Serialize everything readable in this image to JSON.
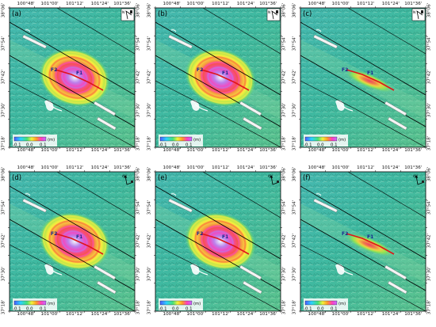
{
  "figure": {
    "panels": [
      {
        "id": "a",
        "label": "(a)",
        "faults": [
          "F2",
          "F1"
        ],
        "north": "N",
        "strong": true,
        "compass": "box"
      },
      {
        "id": "b",
        "label": "(b)",
        "faults": [
          "F2",
          "F1"
        ],
        "north": "N",
        "strong": true,
        "compass": "box"
      },
      {
        "id": "c",
        "label": "(c)",
        "faults": [
          "F2",
          "F1"
        ],
        "north": "N",
        "strong": false,
        "compass": "box"
      },
      {
        "id": "d",
        "label": "(d)",
        "faults": [
          "F2",
          "F1"
        ],
        "north": "AN",
        "strong": true,
        "compass": "arrow"
      },
      {
        "id": "e",
        "label": "(e)",
        "faults": [
          "F2",
          "F1"
        ],
        "north": "AN",
        "strong": true,
        "compass": "arrow"
      },
      {
        "id": "f",
        "label": "(f)",
        "faults": [
          "F2",
          "F1"
        ],
        "north": "AN",
        "strong": false,
        "compass": "arrow"
      }
    ],
    "lon_ticks": [
      "100°48'",
      "101°00'",
      "101°12'",
      "101°24'",
      "101°36'"
    ],
    "lat_ticks": [
      "38°06'",
      "37°54'",
      "37°42'",
      "37°30'",
      "37°18'"
    ],
    "colorbar": {
      "unit": "(m)",
      "ticks": [
        "-0.1",
        "0.0",
        "0.1"
      ]
    },
    "colors": {
      "terrain": "#3fb9a0",
      "terrain_light": "#7fd4a4",
      "fault_trace": "#e0141a",
      "fault_line": "#000000"
    }
  }
}
